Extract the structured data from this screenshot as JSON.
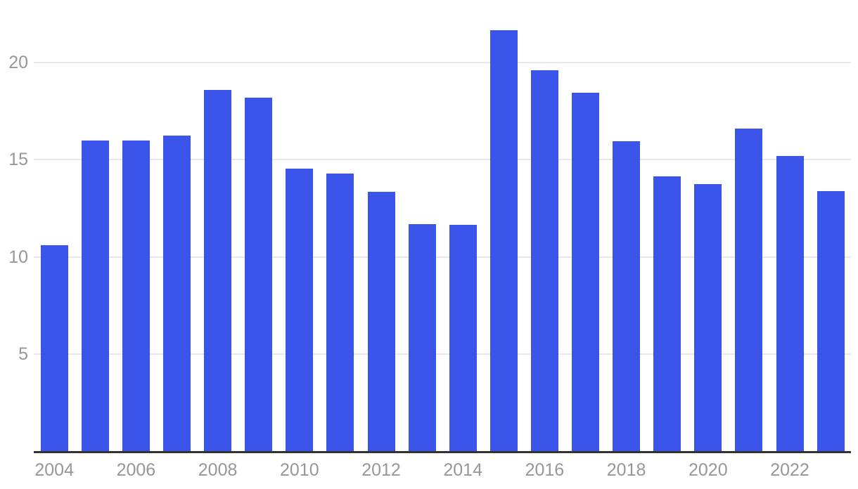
{
  "chart_data": {
    "type": "bar",
    "title": "",
    "xlabel": "",
    "ylabel": "",
    "categories": [
      "2004",
      "2005",
      "2006",
      "2007",
      "2008",
      "2009",
      "2010",
      "2011",
      "2012",
      "2013",
      "2014",
      "2015",
      "2016",
      "2017",
      "2018",
      "2019",
      "2020",
      "2021",
      "2022",
      "2023"
    ],
    "values": [
      10.6,
      16.0,
      16.0,
      16.25,
      18.6,
      18.2,
      14.55,
      14.3,
      13.35,
      11.7,
      11.65,
      21.65,
      19.6,
      18.45,
      15.95,
      14.15,
      13.75,
      16.6,
      15.2,
      13.4
    ],
    "ylim": [
      0,
      23.2
    ],
    "yticks": [
      5,
      10,
      15,
      20
    ],
    "xtick_labels": [
      "2004",
      "2006",
      "2008",
      "2010",
      "2012",
      "2014",
      "2016",
      "2018",
      "2020",
      "2022"
    ],
    "grid": true,
    "legend": false
  },
  "colors": {
    "bar": "#3B54E9",
    "gridline": "#e9e9e9",
    "axis_line": "#333333",
    "tick_label": "#979797",
    "background": "#ffffff"
  }
}
